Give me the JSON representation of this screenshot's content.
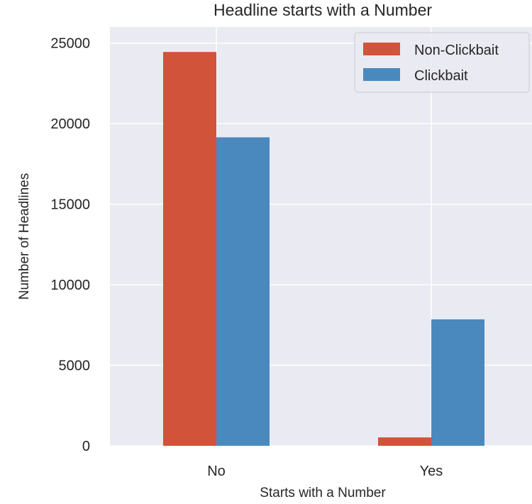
{
  "chart_data": {
    "type": "bar",
    "title": "Headline starts with a Number",
    "xlabel": "Starts with a Number",
    "ylabel": "Number of Headlines",
    "categories": [
      "No",
      "Yes"
    ],
    "series": [
      {
        "name": "Non-Clickbait",
        "values": [
          24450,
          520
        ],
        "color": "#d1533a"
      },
      {
        "name": "Clickbait",
        "values": [
          19150,
          7850
        ],
        "color": "#4a89bd"
      }
    ],
    "ylim": [
      0,
      26000
    ],
    "yticks": [
      0,
      5000,
      10000,
      15000,
      20000,
      25000
    ],
    "grid": true,
    "legend_position": "top-right",
    "background": "#eaeaf2",
    "grid_color": "#ffffff"
  }
}
